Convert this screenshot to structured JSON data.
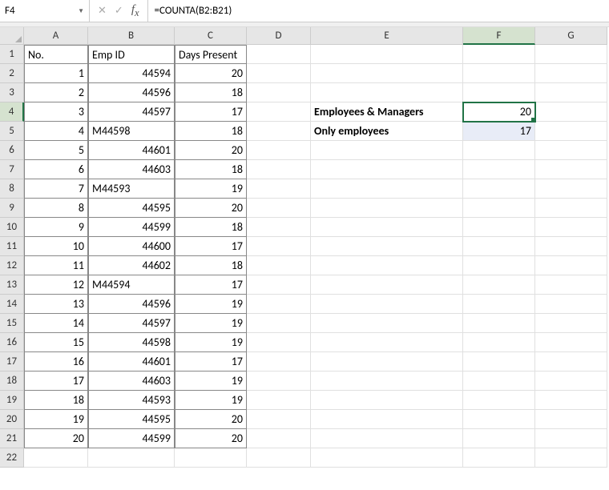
{
  "nameBox": "F4",
  "formula": "=COUNTA(B2:B21)",
  "columns": [
    "A",
    "B",
    "C",
    "D",
    "E",
    "F",
    "G"
  ],
  "colWidths": {
    "A": 80,
    "B": 108,
    "C": 90,
    "D": 80,
    "E": 190,
    "F": 90,
    "G": 90
  },
  "activeCell": "F4",
  "selectedCol": "F",
  "selectedRow": 4,
  "headers": {
    "A": "No.",
    "B": "Emp ID",
    "C": "Days Present"
  },
  "tableRows": [
    {
      "no": 1,
      "emp": "44594",
      "days": 20,
      "empAlign": "r"
    },
    {
      "no": 2,
      "emp": "44596",
      "days": 18,
      "empAlign": "r"
    },
    {
      "no": 3,
      "emp": "44597",
      "days": 17,
      "empAlign": "r"
    },
    {
      "no": 4,
      "emp": "M44598",
      "days": 18,
      "empAlign": "l"
    },
    {
      "no": 5,
      "emp": "44601",
      "days": 20,
      "empAlign": "r"
    },
    {
      "no": 6,
      "emp": "44603",
      "days": 18,
      "empAlign": "r"
    },
    {
      "no": 7,
      "emp": "M44593",
      "days": 19,
      "empAlign": "l"
    },
    {
      "no": 8,
      "emp": "44595",
      "days": 20,
      "empAlign": "r"
    },
    {
      "no": 9,
      "emp": "44599",
      "days": 18,
      "empAlign": "r"
    },
    {
      "no": 10,
      "emp": "44600",
      "days": 17,
      "empAlign": "r"
    },
    {
      "no": 11,
      "emp": "44602",
      "days": 18,
      "empAlign": "r"
    },
    {
      "no": 12,
      "emp": "M44594",
      "days": 17,
      "empAlign": "l"
    },
    {
      "no": 13,
      "emp": "44596",
      "days": 19,
      "empAlign": "r"
    },
    {
      "no": 14,
      "emp": "44597",
      "days": 19,
      "empAlign": "r"
    },
    {
      "no": 15,
      "emp": "44598",
      "days": 19,
      "empAlign": "r"
    },
    {
      "no": 16,
      "emp": "44601",
      "days": 17,
      "empAlign": "r"
    },
    {
      "no": 17,
      "emp": "44603",
      "days": 19,
      "empAlign": "r"
    },
    {
      "no": 18,
      "emp": "44593",
      "days": 19,
      "empAlign": "r"
    },
    {
      "no": 19,
      "emp": "44595",
      "days": 20,
      "empAlign": "r"
    },
    {
      "no": 20,
      "emp": "44599",
      "days": 20,
      "empAlign": "r"
    }
  ],
  "summary": {
    "row4": {
      "label": "Employees & Managers",
      "value": 20
    },
    "row5": {
      "label": "Only employees",
      "value": 17
    }
  },
  "totalRows": 22,
  "colors": {
    "headerBg": "#e6e6e6",
    "gridLine": "#e0e0e0",
    "cellBorder": "#888888",
    "selHeaderBg": "#d5e2cf",
    "excelGreen": "#217346",
    "highlight": "#e8ecf7"
  }
}
